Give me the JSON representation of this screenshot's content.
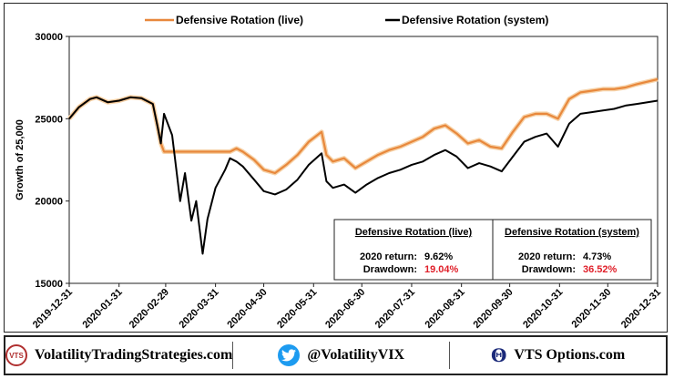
{
  "chart_data": {
    "type": "line",
    "title": "",
    "ylabel": "Growth of 25,000",
    "xlabel": "",
    "ylim": [
      15000,
      30000
    ],
    "yticks": [
      "15000",
      "20000",
      "25000",
      "30000"
    ],
    "xticks": [
      "2019-12-31",
      "2020-01-31",
      "2020-02-29",
      "2020-03-31",
      "2020-04-30",
      "2020-05-31",
      "2020-06-30",
      "2020-07-31",
      "2020-08-31",
      "2020-09-30",
      "2020-10-31",
      "2020-11-30",
      "2020-12-31"
    ],
    "legend_position": "top",
    "grid": false,
    "series": [
      {
        "name": "Defensive Rotation  (live)",
        "color": "#e8883c",
        "x": [
          "2019-12-31",
          "2020-01-06",
          "2020-01-13",
          "2020-01-17",
          "2020-01-24",
          "2020-01-31",
          "2020-02-07",
          "2020-02-14",
          "2020-02-21",
          "2020-02-24",
          "2020-02-26",
          "2020-02-28",
          "2020-03-06",
          "2020-03-13",
          "2020-03-20",
          "2020-03-27",
          "2020-04-03",
          "2020-04-09",
          "2020-04-13",
          "2020-04-17",
          "2020-04-24",
          "2020-04-30",
          "2020-05-07",
          "2020-05-14",
          "2020-05-21",
          "2020-05-28",
          "2020-06-05",
          "2020-06-08",
          "2020-06-12",
          "2020-06-19",
          "2020-06-26",
          "2020-07-03",
          "2020-07-10",
          "2020-07-17",
          "2020-07-24",
          "2020-07-31",
          "2020-08-07",
          "2020-08-14",
          "2020-08-21",
          "2020-08-28",
          "2020-09-04",
          "2020-09-11",
          "2020-09-18",
          "2020-09-25",
          "2020-10-02",
          "2020-10-09",
          "2020-10-16",
          "2020-10-23",
          "2020-10-30",
          "2020-11-06",
          "2020-11-13",
          "2020-11-20",
          "2020-11-27",
          "2020-12-04",
          "2020-12-11",
          "2020-12-18",
          "2020-12-31"
        ],
        "values": [
          25000,
          25700,
          26200,
          26300,
          26000,
          26100,
          26300,
          26250,
          25900,
          24500,
          23500,
          23000,
          23000,
          23000,
          23000,
          23000,
          23000,
          23000,
          23200,
          23000,
          22500,
          21900,
          21700,
          22200,
          22800,
          23600,
          24200,
          22800,
          22400,
          22600,
          22000,
          22400,
          22800,
          23100,
          23300,
          23600,
          23900,
          24400,
          24600,
          24100,
          23500,
          23700,
          23300,
          23200,
          24200,
          25100,
          25300,
          25300,
          25000,
          26200,
          26600,
          26700,
          26800,
          26800,
          26900,
          27100,
          27400
        ]
      },
      {
        "name": "Defensive Rotation  (system)",
        "color": "#000000",
        "x": [
          "2019-12-31",
          "2020-01-06",
          "2020-01-13",
          "2020-01-17",
          "2020-01-24",
          "2020-01-31",
          "2020-02-07",
          "2020-02-14",
          "2020-02-21",
          "2020-02-24",
          "2020-02-26",
          "2020-02-28",
          "2020-03-04",
          "2020-03-09",
          "2020-03-12",
          "2020-03-16",
          "2020-03-19",
          "2020-03-23",
          "2020-03-26",
          "2020-03-31",
          "2020-04-06",
          "2020-04-09",
          "2020-04-13",
          "2020-04-17",
          "2020-04-24",
          "2020-04-30",
          "2020-05-07",
          "2020-05-14",
          "2020-05-21",
          "2020-05-28",
          "2020-06-05",
          "2020-06-08",
          "2020-06-12",
          "2020-06-19",
          "2020-06-26",
          "2020-07-03",
          "2020-07-10",
          "2020-07-17",
          "2020-07-24",
          "2020-07-31",
          "2020-08-07",
          "2020-08-14",
          "2020-08-21",
          "2020-08-28",
          "2020-09-04",
          "2020-09-11",
          "2020-09-18",
          "2020-09-25",
          "2020-10-02",
          "2020-10-09",
          "2020-10-16",
          "2020-10-23",
          "2020-10-30",
          "2020-11-06",
          "2020-11-13",
          "2020-11-20",
          "2020-11-27",
          "2020-12-04",
          "2020-12-11",
          "2020-12-18",
          "2020-12-31"
        ],
        "values": [
          25000,
          25700,
          26200,
          26300,
          26000,
          26100,
          26300,
          26250,
          25900,
          24500,
          23500,
          25300,
          24000,
          20000,
          21700,
          18800,
          20000,
          16800,
          18900,
          20800,
          21900,
          22600,
          22400,
          22100,
          21300,
          20600,
          20400,
          20700,
          21300,
          22200,
          22900,
          21200,
          20800,
          21000,
          20500,
          21000,
          21400,
          21700,
          21900,
          22200,
          22400,
          22800,
          23100,
          22700,
          22000,
          22300,
          22100,
          21800,
          22700,
          23600,
          23900,
          24100,
          23300,
          24700,
          25300,
          25400,
          25500,
          25600,
          25800,
          25900,
          26100
        ]
      }
    ]
  },
  "stats_table": {
    "live": {
      "header": "Defensive Rotation  (live)",
      "return_label": "2020 return:",
      "return_value": "9.62%",
      "drawdown_label": "Drawdown:",
      "drawdown_value": "19.04%"
    },
    "system": {
      "header": "Defensive Rotation  (system)",
      "return_label": "2020 return:",
      "return_value": "4.73%",
      "drawdown_label": "Drawdown:",
      "drawdown_value": "36.52%"
    },
    "drawdown_color": "#e0202a"
  },
  "footer": {
    "site": "VolatilityTradingStrategies.com",
    "logo_text": "VTS",
    "twitter": "@VolatilityVIX",
    "vts_options": "VTS Options.com",
    "twitter_icon": "twitter-bird-icon",
    "theta_icon": "theta-icon",
    "theta_glyph": "Θ"
  }
}
